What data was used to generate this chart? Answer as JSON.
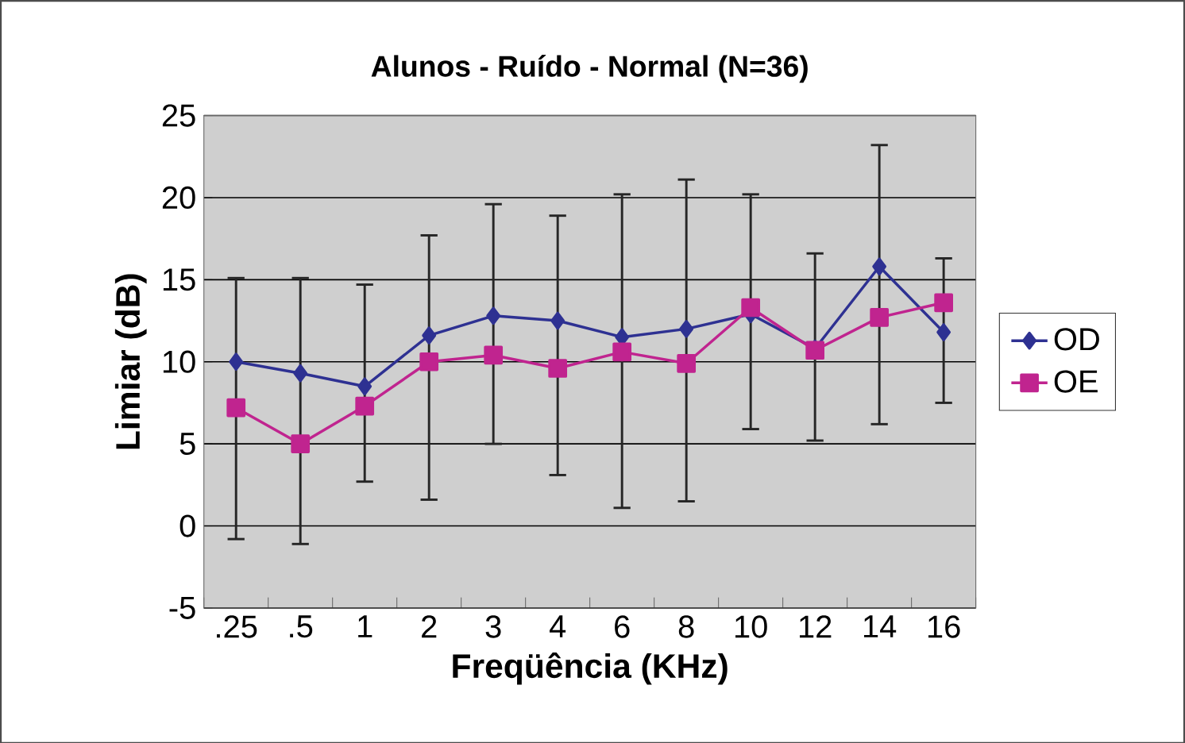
{
  "chart_data": {
    "type": "line",
    "title": "Alunos - Ruído - Normal (N=36)",
    "xlabel": "Freqüência (KHz)",
    "ylabel": "Limiar (dB)",
    "categories": [
      ".25",
      ".5",
      "1",
      "2",
      "3",
      "4",
      "6",
      "8",
      "10",
      "12",
      "14",
      "16"
    ],
    "series": [
      {
        "name": "OD",
        "color": "#2e3192",
        "marker": "diamond",
        "values": [
          10.0,
          9.3,
          8.5,
          11.6,
          12.8,
          12.5,
          11.5,
          12.0,
          12.9,
          10.8,
          15.8,
          11.8
        ]
      },
      {
        "name": "OE",
        "color": "#c0248f",
        "marker": "square",
        "values": [
          7.2,
          5.0,
          7.3,
          10.0,
          10.4,
          9.6,
          10.6,
          9.9,
          13.3,
          10.7,
          12.7,
          13.6
        ],
        "errors": [
          [
            -0.8,
            15.1
          ],
          [
            -1.1,
            15.1
          ],
          [
            2.7,
            14.7
          ],
          [
            1.6,
            17.7
          ],
          [
            5.0,
            19.6
          ],
          [
            3.1,
            18.9
          ],
          [
            1.1,
            20.2
          ],
          [
            1.5,
            21.1
          ],
          [
            5.9,
            20.2
          ],
          [
            5.2,
            16.6
          ],
          [
            6.2,
            23.2
          ],
          [
            7.5,
            16.3
          ]
        ]
      }
    ],
    "ylim": [
      -5,
      25
    ],
    "yticks": [
      -5,
      0,
      5,
      10,
      15,
      20,
      25
    ],
    "grid": "y",
    "legend": "right"
  }
}
